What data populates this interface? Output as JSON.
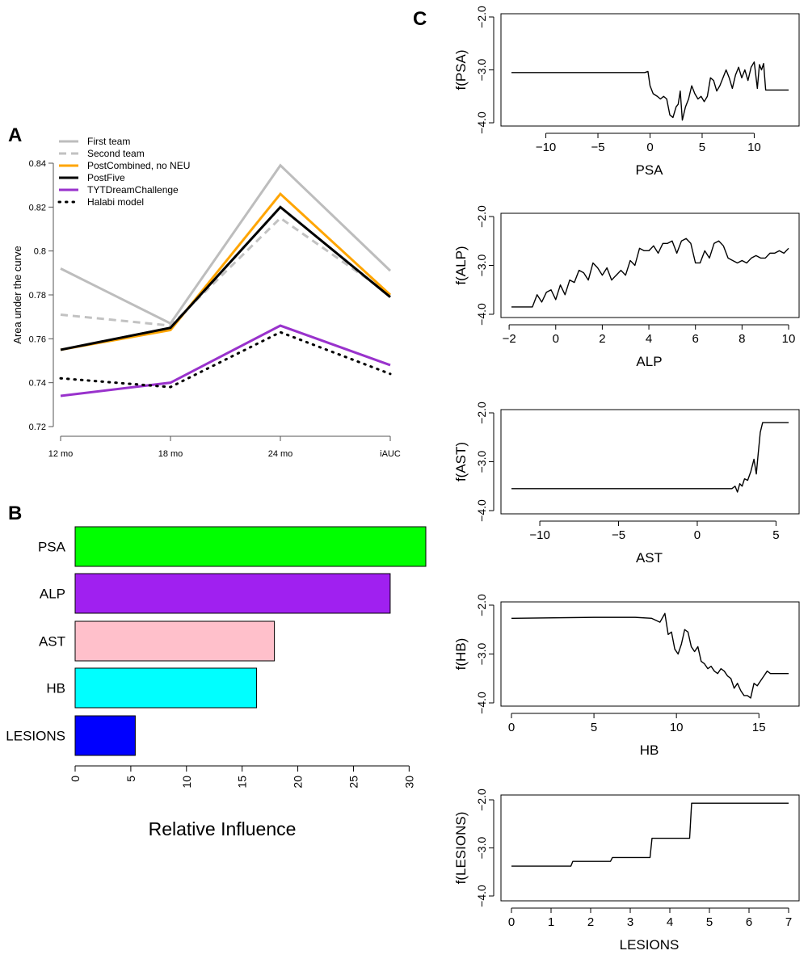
{
  "panels": {
    "a": "A",
    "b": "B",
    "c": "C"
  },
  "chart_data": [
    {
      "id": "A",
      "type": "line",
      "title": "",
      "xlabel": "",
      "ylabel": "Area under the curve",
      "categories": [
        "12 mo",
        "18 mo",
        "24 mo",
        "iAUC"
      ],
      "ylim": [
        0.72,
        0.84
      ],
      "yticks": [
        0.72,
        0.74,
        0.76,
        0.78,
        0.8,
        0.82,
        0.84
      ],
      "ytick_labels": [
        "0.72",
        "0.74",
        "0.76",
        "0.78",
        "0.8",
        "0.82",
        "0.84"
      ],
      "legend_position": "top-left",
      "series": [
        {
          "name": "First team",
          "color": "#bdbdbd",
          "dash": "solid",
          "values": [
            0.792,
            0.767,
            0.839,
            0.791
          ]
        },
        {
          "name": "Second team",
          "color": "#c2c2c2",
          "dash": "dashed",
          "values": [
            0.771,
            0.766,
            0.815,
            0.78
          ]
        },
        {
          "name": "PostCombined, no NEU",
          "color": "#ffa500",
          "dash": "solid",
          "values": [
            0.755,
            0.764,
            0.826,
            0.78
          ]
        },
        {
          "name": "PostFive",
          "color": "#000000",
          "dash": "solid",
          "values": [
            0.755,
            0.765,
            0.82,
            0.779
          ]
        },
        {
          "name": "TYTDreamChallenge",
          "color": "#9932cc",
          "dash": "solid",
          "values": [
            0.734,
            0.74,
            0.766,
            0.748
          ]
        },
        {
          "name": "Halabi model",
          "color": "#000000",
          "dash": "dotted",
          "values": [
            0.742,
            0.738,
            0.763,
            0.744
          ]
        }
      ]
    },
    {
      "id": "B",
      "type": "bar",
      "orientation": "horizontal",
      "xlabel": "Relative Influence",
      "ylabel": "",
      "categories": [
        "PSA",
        "ALP",
        "AST",
        "HB",
        "LESIONS"
      ],
      "values": [
        31.5,
        28.3,
        17.9,
        16.3,
        5.4
      ],
      "colors": [
        "#00ff00",
        "#a020f0",
        "#ffc0cb",
        "#00ffff",
        "#0000ff"
      ],
      "xlim": [
        0,
        31.5
      ],
      "xticks": [
        0,
        5,
        10,
        15,
        20,
        25,
        30
      ],
      "xtick_labels": [
        "0",
        "5",
        "10",
        "15",
        "20",
        "25",
        "30"
      ]
    },
    {
      "id": "C-PSA",
      "type": "line",
      "xlabel": "PSA",
      "ylabel": "f(PSA)",
      "xlim": [
        -13.3,
        13.3
      ],
      "ylim": [
        -4.0,
        -2.0
      ],
      "xticks": [
        -10,
        -5,
        0,
        5,
        10
      ],
      "xtick_labels": [
        "−10",
        "−5",
        "0",
        "5",
        "10"
      ],
      "yticks": [
        -4.0,
        -3.0,
        -2.0
      ],
      "ytick_labels": [
        "−4.0",
        "−3.0",
        "−2.0"
      ],
      "x": [
        -13.3,
        -0.5,
        -0.2,
        0,
        0.3,
        0.7,
        1.0,
        1.3,
        1.6,
        1.9,
        2.2,
        2.5,
        2.7,
        2.9,
        3.1,
        3.4,
        3.7,
        4.0,
        4.3,
        4.6,
        4.9,
        5.2,
        5.5,
        5.8,
        6.1,
        6.4,
        6.7,
        7.0,
        7.3,
        7.6,
        7.9,
        8.2,
        8.5,
        8.8,
        9.1,
        9.4,
        9.7,
        10.0,
        10.3,
        10.5,
        10.7,
        10.9,
        11.1,
        11.3,
        11.6,
        12.0,
        13.3
      ],
      "y": [
        -3.05,
        -3.05,
        -3.03,
        -3.3,
        -3.45,
        -3.5,
        -3.55,
        -3.5,
        -3.55,
        -3.85,
        -3.9,
        -3.7,
        -3.65,
        -3.4,
        -3.95,
        -3.7,
        -3.55,
        -3.3,
        -3.45,
        -3.55,
        -3.5,
        -3.6,
        -3.5,
        -3.15,
        -3.2,
        -3.4,
        -3.3,
        -3.15,
        -3.0,
        -3.15,
        -3.35,
        -3.1,
        -2.95,
        -3.15,
        -3.0,
        -3.2,
        -2.95,
        -2.85,
        -3.35,
        -2.9,
        -3.0,
        -2.88,
        -3.38,
        -3.38,
        -3.38,
        -3.38,
        -3.38
      ]
    },
    {
      "id": "C-ALP",
      "type": "line",
      "xlabel": "ALP",
      "ylabel": "f(ALP)",
      "xlim": [
        -1.9,
        10
      ],
      "ylim": [
        -4.0,
        -2.0
      ],
      "xticks": [
        -2,
        0,
        2,
        4,
        6,
        8,
        10
      ],
      "xtick_labels": [
        "−2",
        "0",
        "2",
        "4",
        "6",
        "8",
        "10"
      ],
      "yticks": [
        -4.0,
        -3.0,
        -2.0
      ],
      "ytick_labels": [
        "−4.0",
        "−3.0",
        "−2.0"
      ],
      "x": [
        -1.9,
        -1.0,
        -0.8,
        -0.6,
        -0.4,
        -0.2,
        0.0,
        0.2,
        0.4,
        0.6,
        0.8,
        1.0,
        1.2,
        1.4,
        1.6,
        1.8,
        2.0,
        2.2,
        2.4,
        2.6,
        2.8,
        3.0,
        3.2,
        3.4,
        3.6,
        3.8,
        4.0,
        4.2,
        4.4,
        4.6,
        4.8,
        5.0,
        5.2,
        5.4,
        5.6,
        5.8,
        6.0,
        6.2,
        6.4,
        6.6,
        6.8,
        7.0,
        7.2,
        7.4,
        7.6,
        7.8,
        8.0,
        8.2,
        8.4,
        8.6,
        8.8,
        9.0,
        9.2,
        9.4,
        9.6,
        9.8,
        10.0
      ],
      "y": [
        -3.85,
        -3.85,
        -3.6,
        -3.75,
        -3.55,
        -3.5,
        -3.7,
        -3.4,
        -3.6,
        -3.3,
        -3.35,
        -3.1,
        -3.15,
        -3.3,
        -2.95,
        -3.05,
        -3.2,
        -3.05,
        -3.3,
        -3.2,
        -3.1,
        -3.2,
        -2.9,
        -3.0,
        -2.65,
        -2.7,
        -2.7,
        -2.6,
        -2.75,
        -2.55,
        -2.55,
        -2.5,
        -2.75,
        -2.5,
        -2.45,
        -2.55,
        -2.95,
        -2.95,
        -2.7,
        -2.85,
        -2.55,
        -2.5,
        -2.6,
        -2.85,
        -2.9,
        -2.95,
        -2.9,
        -2.95,
        -2.85,
        -2.8,
        -2.85,
        -2.85,
        -2.75,
        -2.75,
        -2.7,
        -2.75,
        -2.65
      ]
    },
    {
      "id": "C-AST",
      "type": "line",
      "xlabel": "AST",
      "ylabel": "f(AST)",
      "xlim": [
        -11.8,
        5.8
      ],
      "ylim": [
        -4.0,
        -2.0
      ],
      "xticks": [
        -10,
        -5,
        0,
        5
      ],
      "xtick_labels": [
        "−10",
        "−5",
        "0",
        "5"
      ],
      "yticks": [
        -4.0,
        -3.0,
        -2.0
      ],
      "ytick_labels": [
        "−4.0",
        "−3.0",
        "−2.0"
      ],
      "x": [
        -11.8,
        2.2,
        2.4,
        2.55,
        2.7,
        2.85,
        3.0,
        3.2,
        3.4,
        3.6,
        3.75,
        3.85,
        4.0,
        4.15,
        4.3,
        4.5,
        5.8
      ],
      "y": [
        -3.55,
        -3.55,
        -3.5,
        -3.62,
        -3.45,
        -3.5,
        -3.35,
        -3.38,
        -3.2,
        -2.95,
        -3.25,
        -2.9,
        -2.4,
        -2.2,
        -2.2,
        -2.2,
        -2.2
      ]
    },
    {
      "id": "C-HB",
      "type": "line",
      "xlabel": "HB",
      "ylabel": "f(HB)",
      "xlim": [
        0,
        16.8
      ],
      "ylim": [
        -4.0,
        -2.0
      ],
      "xticks": [
        0,
        5,
        10,
        15
      ],
      "xtick_labels": [
        "0",
        "5",
        "10",
        "15"
      ],
      "yticks": [
        -4.0,
        -3.0,
        -2.0
      ],
      "ytick_labels": [
        "−4.0",
        "−3.0",
        "−2.0"
      ],
      "x": [
        0,
        5.0,
        7.5,
        8.5,
        9.0,
        9.3,
        9.5,
        9.7,
        9.9,
        10.1,
        10.3,
        10.5,
        10.7,
        10.9,
        11.1,
        11.3,
        11.5,
        11.7,
        11.9,
        12.1,
        12.3,
        12.5,
        12.7,
        12.9,
        13.1,
        13.3,
        13.5,
        13.7,
        13.9,
        14.1,
        14.3,
        14.5,
        14.7,
        14.9,
        15.1,
        15.3,
        15.5,
        15.7,
        16.0,
        16.8
      ],
      "y": [
        -2.27,
        -2.25,
        -2.25,
        -2.27,
        -2.35,
        -2.17,
        -2.6,
        -2.55,
        -2.9,
        -3.0,
        -2.8,
        -2.5,
        -2.55,
        -2.85,
        -2.95,
        -2.85,
        -3.15,
        -3.2,
        -3.3,
        -3.25,
        -3.35,
        -3.4,
        -3.3,
        -3.35,
        -3.45,
        -3.5,
        -3.7,
        -3.6,
        -3.75,
        -3.85,
        -3.85,
        -3.9,
        -3.6,
        -3.65,
        -3.55,
        -3.45,
        -3.35,
        -3.4,
        -3.4,
        -3.4
      ]
    },
    {
      "id": "C-LESIONS",
      "type": "line",
      "xlabel": "LESIONS",
      "ylabel": "f(LESIONS)",
      "xlim": [
        0,
        7
      ],
      "ylim": [
        -4.0,
        -2.0
      ],
      "xticks": [
        0,
        1,
        2,
        3,
        4,
        5,
        6,
        7
      ],
      "xtick_labels": [
        "0",
        "1",
        "2",
        "3",
        "4",
        "5",
        "6",
        "7"
      ],
      "yticks": [
        -4.0,
        -3.0,
        -2.0
      ],
      "ytick_labels": [
        "−4.0",
        "−3.0",
        "−2.0"
      ],
      "x": [
        0,
        1.5,
        1.55,
        2.5,
        2.55,
        3.5,
        3.55,
        4.5,
        4.55,
        7.0
      ],
      "y": [
        -3.38,
        -3.38,
        -3.28,
        -3.28,
        -3.2,
        -3.2,
        -2.8,
        -2.8,
        -2.07,
        -2.07
      ]
    }
  ]
}
